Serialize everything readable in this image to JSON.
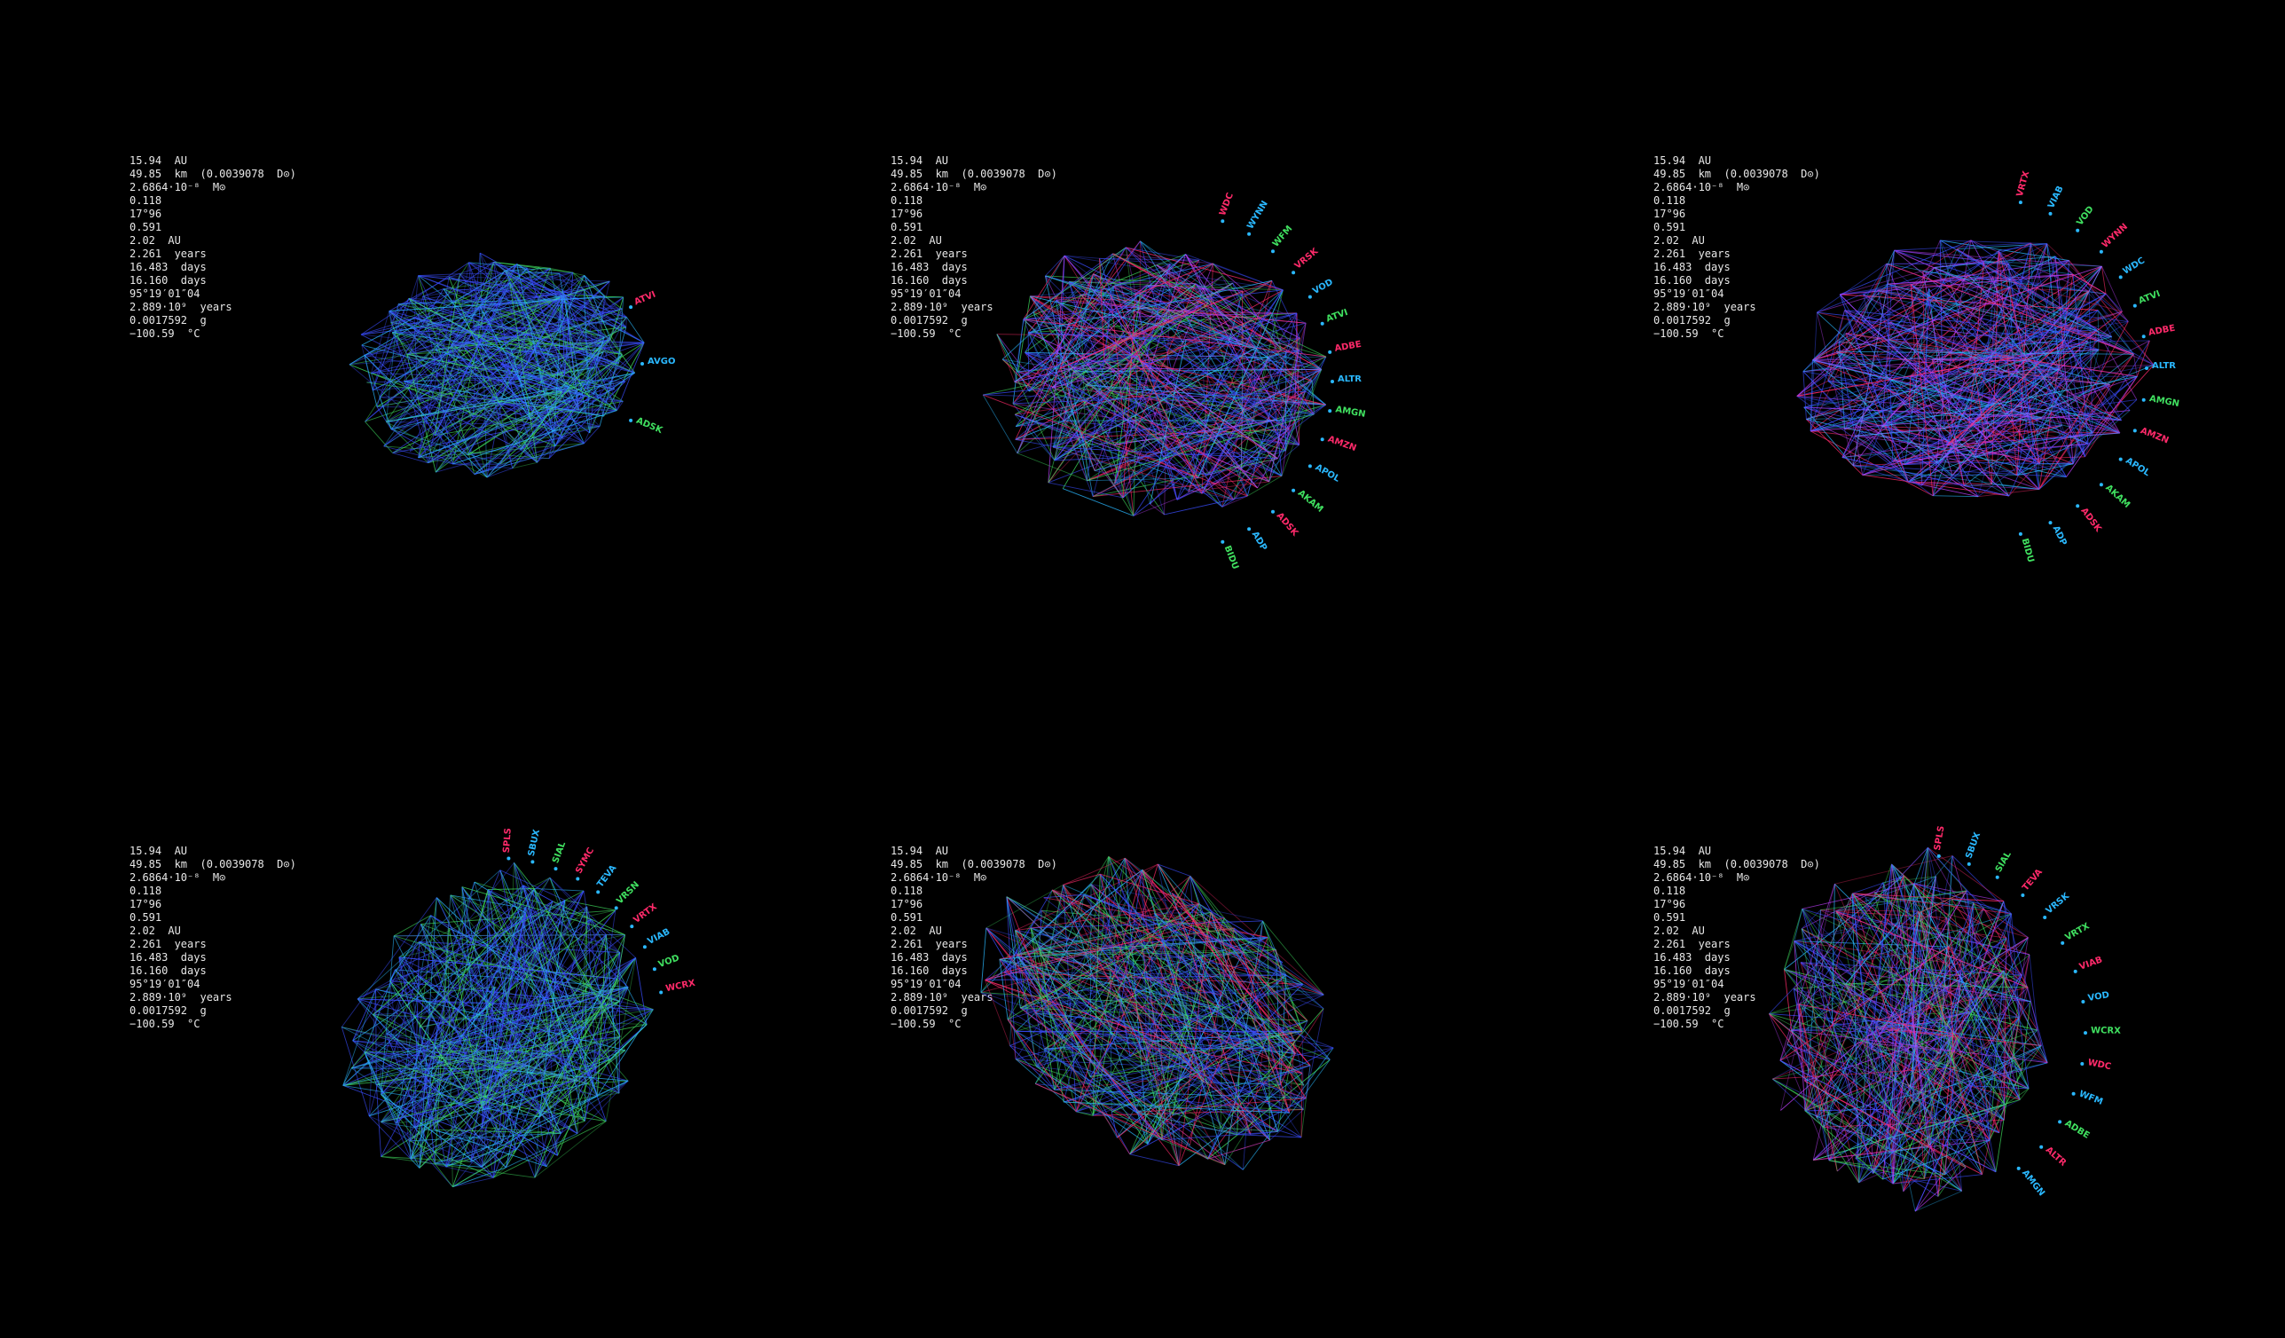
{
  "stats": [
    "15.94  AU",
    "49.85  km  (0.0039078  D⊙)",
    "2.6864·10⁻⁸  M⊙",
    "0.118",
    "17°96",
    "0.591",
    "2.02  AU",
    "2.261  years",
    "16.483  days",
    "16.160  days",
    "95°19′01″04",
    "2.889·10⁹  years",
    "0.0017592  g",
    "−100.59  °C"
  ],
  "panels": [
    {
      "id": "panel-1",
      "labels": [
        "ATVI",
        "AVGO",
        "ADSK"
      ]
    },
    {
      "id": "panel-2",
      "labels": [
        "WDC",
        "WYNN",
        "WFM",
        "VRSK",
        "VOD",
        "ATVI",
        "ADBE",
        "ALTR",
        "AMGN",
        "AMZN",
        "APOL",
        "AKAM",
        "ADSK",
        "ADP",
        "BIDU"
      ]
    },
    {
      "id": "panel-3",
      "labels": [
        "VRTX",
        "VIAB",
        "VOD",
        "WYNN",
        "WDC",
        "ATVI",
        "ADBE",
        "ALTR",
        "AMGN",
        "AMZN",
        "APOL",
        "AKAM",
        "ADSK",
        "ADP",
        "BIDU"
      ]
    },
    {
      "id": "panel-4",
      "labels": [
        "SPLS",
        "SBUX",
        "SIAL",
        "SYMC",
        "TEVA",
        "VRSN",
        "VRTX",
        "VIAB",
        "VOD",
        "WCRX"
      ]
    },
    {
      "id": "panel-5",
      "labels": []
    },
    {
      "id": "panel-6",
      "labels": [
        "SPLS",
        "SBUX",
        "SIAL",
        "TEVA",
        "VRSK",
        "VRTX",
        "VIAB",
        "VOD",
        "WCRX",
        "WDC",
        "WFM",
        "ADBE",
        "ALTR",
        "AMGN"
      ]
    }
  ],
  "colors": {
    "background": "#000000",
    "text": "#e8e8e8",
    "edge_blue": "#3a4dff",
    "edge_green": "#40e060",
    "edge_red": "#ff2a6a",
    "edge_cyan": "#2ab8ff",
    "edge_magenta": "#c040ff"
  }
}
